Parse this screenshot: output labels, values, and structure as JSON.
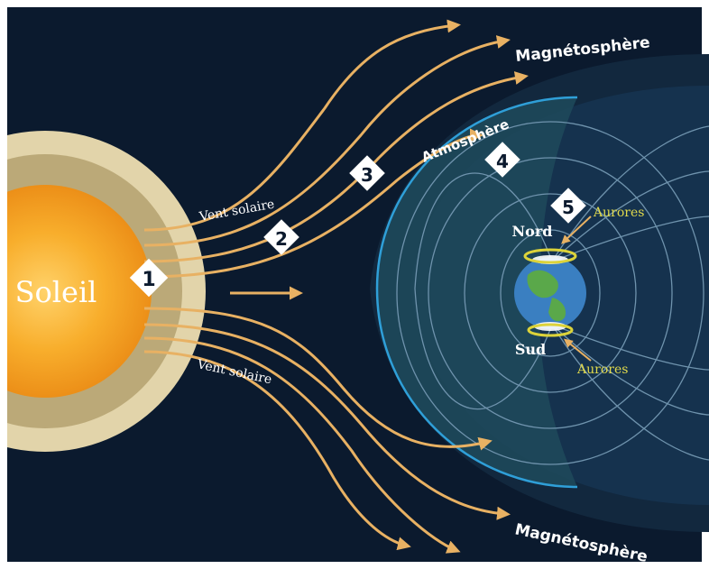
{
  "labels": {
    "sun": "Soleil",
    "solar_wind_top": "Vent solaire",
    "solar_wind_bottom": "Vent solaire",
    "magnetosphere_top": "Magnétosphère",
    "magnetosphere_bottom": "Magnétosphère",
    "atmosphere": "Atmosphère",
    "north": "Nord",
    "south": "Sud",
    "aurora_north": "Aurores",
    "aurora_south": "Aurores"
  },
  "markers": [
    "1",
    "2",
    "3",
    "4",
    "5"
  ],
  "colors": {
    "space": "#0b1a2e",
    "sun_core": "#f4a41c",
    "sun_halo_inner": "#b7a574",
    "sun_halo_outer": "#ded0a6",
    "wind_arrow": "#e8b163",
    "field_line": "#6f93ad",
    "atmosphere_fill": "#1e4a5c",
    "atmosphere_edge": "#2f9fd8",
    "aurora": "#dcd33a",
    "label_light": "#ffffff",
    "label_aurora": "#e0d94c"
  }
}
